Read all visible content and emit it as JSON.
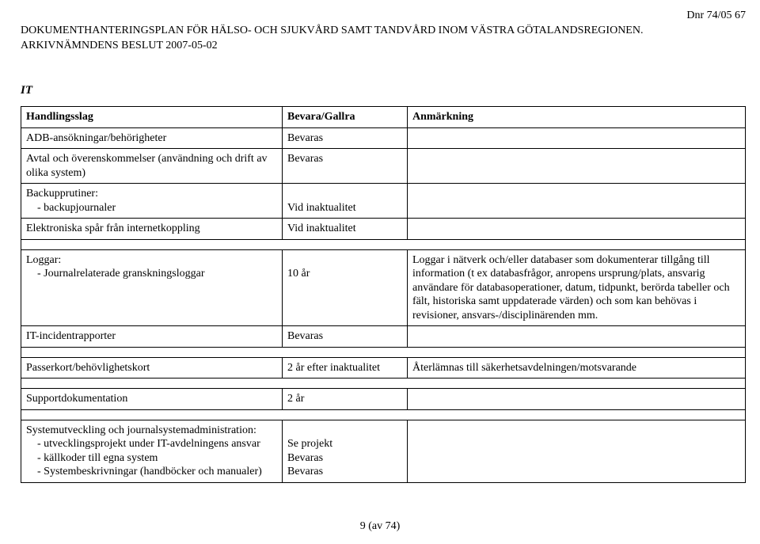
{
  "header": {
    "dnr": "Dnr 74/05 67",
    "title_line1": "DOKUMENTHANTERINGSPLAN FÖR HÄLSO- OCH SJUKVÅRD SAMT TANDVÅRD INOM VÄSTRA GÖTALANDSREGIONEN.",
    "title_line2": "ARKIVNÄMNDENS BESLUT 2007-05-02"
  },
  "section": "IT",
  "table": {
    "columns": [
      "Handlingsslag",
      "Bevara/Gallra",
      "Anmärkning"
    ],
    "block1": [
      {
        "col1": "ADB-ansökningar/behörigheter",
        "col2": "Bevaras",
        "col3": ""
      },
      {
        "col1_line1": "Avtal och överenskommelser (användning och drift av",
        "col1_line2": "olika system)",
        "col2": "Bevaras",
        "col3": ""
      },
      {
        "col1_line1": "Backupprutiner:",
        "col1_item": "backupjournaler",
        "col2": "Vid inaktualitet",
        "col3": ""
      },
      {
        "col1": "Elektroniska spår från internetkoppling",
        "col2": "Vid inaktualitet",
        "col3": ""
      }
    ],
    "block2": [
      {
        "col1_line1": "Loggar:",
        "col1_item": "Journalrelaterade granskningsloggar",
        "col2": "10 år",
        "col3": "Loggar i nätverk och/eller databaser som dokumenterar tillgång till information (t ex databasfrågor, anropens ursprung/plats, ansvarig användare för databasoperationer, datum, tidpunkt, berörda tabeller och fält, historiska samt uppdaterade värden) och som kan behövas i revisioner, ansvars-/disciplinärenden mm."
      },
      {
        "col1": "IT-incidentrapporter",
        "col2": "Bevaras",
        "col3": ""
      }
    ],
    "block3": [
      {
        "col1": "Passerkort/behövlighetskort",
        "col2": "2 år efter inaktualitet",
        "col3": "Återlämnas till säkerhetsavdelningen/motsvarande"
      }
    ],
    "block4": [
      {
        "col1": "Supportdokumentation",
        "col2": "2 år",
        "col3": ""
      }
    ],
    "block5": [
      {
        "col1_line1": "Systemutveckling och journalsystemadministration:",
        "col1_item1": "utvecklingsprojekt under IT-avdelningens ansvar",
        "col1_item2": "källkoder till egna system",
        "col1_item3": "Systembeskrivningar (handböcker och manualer)",
        "col2_line1": "Se projekt",
        "col2_line2": "Bevaras",
        "col2_line3": "Bevaras",
        "col3": ""
      }
    ]
  },
  "footer": "9 (av 74)"
}
